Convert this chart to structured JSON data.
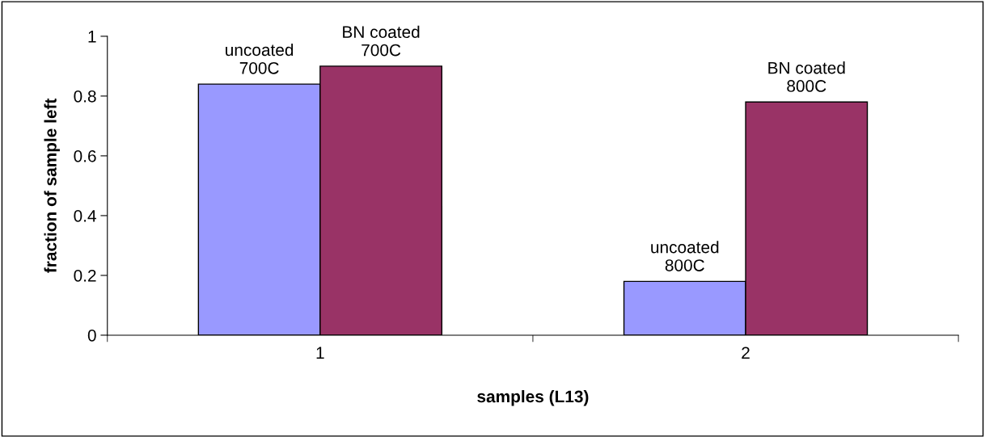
{
  "chart_data": {
    "type": "bar",
    "xlabel": "samples (L13)",
    "ylabel": "fraction of sample left",
    "categories": [
      "1",
      "2"
    ],
    "series": [
      {
        "color": "#9999ff",
        "values": [
          0.84,
          0.18
        ],
        "value_labels": [
          "uncoated\n700C",
          "uncoated\n800C"
        ]
      },
      {
        "color": "#993366",
        "values": [
          0.9,
          0.78
        ],
        "value_labels": [
          "BN coated\n700C",
          "BN coated\n800C"
        ]
      }
    ],
    "ylim": [
      0,
      1
    ],
    "yticks": [
      0,
      0.2,
      0.4,
      0.6,
      0.8,
      1
    ],
    "grid": false,
    "legend": false
  }
}
